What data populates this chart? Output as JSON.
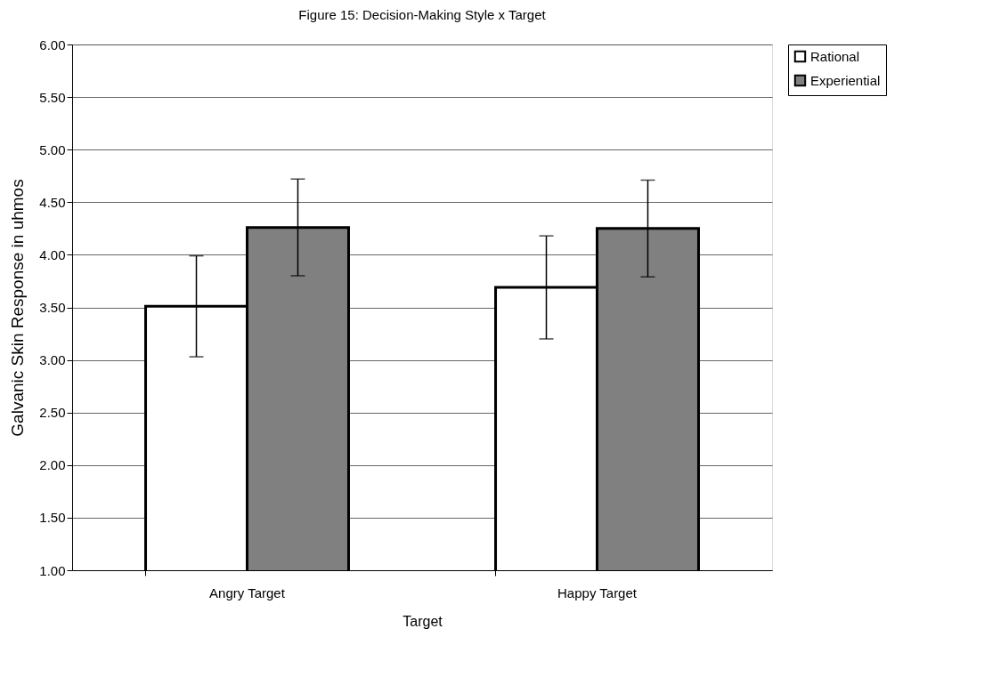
{
  "chart_data": {
    "type": "bar",
    "title": "Figure 15: Decision-Making Style x Target",
    "xlabel": "Target",
    "ylabel": "Galvanic Skin Response in uhmos",
    "categories": [
      "Angry Target",
      "Happy Target"
    ],
    "series": [
      {
        "name": "Rational",
        "color": "#ffffff",
        "values": [
          3.51,
          3.69
        ],
        "errors": [
          0.48,
          0.49
        ]
      },
      {
        "name": "Experiential",
        "color": "#808080",
        "values": [
          4.26,
          4.25
        ],
        "errors": [
          0.46,
          0.46
        ]
      }
    ],
    "ylim": [
      1.0,
      6.0
    ],
    "yticks": [
      {
        "value": 1.0,
        "label": "1.00"
      },
      {
        "value": 1.5,
        "label": "1.50"
      },
      {
        "value": 2.0,
        "label": "2.00"
      },
      {
        "value": 2.5,
        "label": "2.50"
      },
      {
        "value": 3.0,
        "label": "3.00"
      },
      {
        "value": 3.5,
        "label": "3.50"
      },
      {
        "value": 4.0,
        "label": "4.00"
      },
      {
        "value": 4.5,
        "label": "4.50"
      },
      {
        "value": 5.0,
        "label": "5.00"
      },
      {
        "value": 5.5,
        "label": "5.50"
      },
      {
        "value": 6.0,
        "label": "6.00"
      }
    ],
    "grid": "y",
    "legend": "right"
  }
}
